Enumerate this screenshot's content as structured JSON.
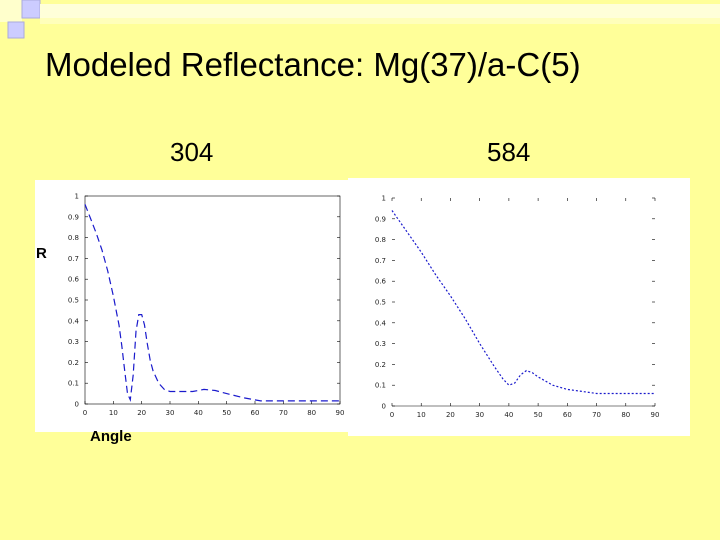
{
  "slide": {
    "title": "Modeled Reflectance: Mg(37)/a-C(5)",
    "background_color": "#ffff99"
  },
  "labels": {
    "left_wavelength": "304",
    "right_wavelength": "584",
    "y_axis_word": "R",
    "x_axis_word": "Angle"
  },
  "chart_data": [
    {
      "type": "line",
      "title": "304",
      "xlabel": "Angle",
      "ylabel": "R",
      "xlim": [
        0,
        90
      ],
      "ylim": [
        0,
        1
      ],
      "x_ticks": [
        "0",
        "10",
        "20",
        "30",
        "40",
        "50",
        "60",
        "70",
        "80",
        "90"
      ],
      "y_ticks": [
        "0",
        "0.1",
        "0.2",
        "0.3",
        "0.4",
        "0.5",
        "0.6",
        "0.7",
        "0.8",
        "0.9",
        "1"
      ],
      "grid": false,
      "line_color": "#1a1acc",
      "line_style": "dashed",
      "x": [
        0,
        2,
        4,
        6,
        8,
        10,
        12,
        13,
        14,
        15,
        16,
        17,
        18,
        19,
        20,
        21,
        22,
        23,
        24,
        26,
        28,
        30,
        34,
        38,
        42,
        46,
        50,
        56,
        62,
        70,
        80,
        90
      ],
      "y": [
        0.96,
        0.89,
        0.82,
        0.74,
        0.64,
        0.52,
        0.38,
        0.28,
        0.16,
        0.05,
        0.02,
        0.14,
        0.35,
        0.43,
        0.43,
        0.38,
        0.29,
        0.21,
        0.16,
        0.1,
        0.07,
        0.06,
        0.06,
        0.06,
        0.07,
        0.065,
        0.05,
        0.03,
        0.015,
        0.015,
        0.015,
        0.015
      ]
    },
    {
      "type": "line",
      "title": "584",
      "xlim": [
        0,
        90
      ],
      "ylim": [
        0,
        1
      ],
      "x_ticks": [
        "0",
        "10",
        "20",
        "30",
        "40",
        "50",
        "60",
        "70",
        "80",
        "90"
      ],
      "y_ticks": [
        "0",
        "0.1",
        "0.2",
        "0.3",
        "0.4",
        "0.5",
        "0.6",
        "0.7",
        "0.8",
        "0.9",
        "1"
      ],
      "grid": false,
      "line_color": "#1a1acc",
      "line_style": "dotted",
      "x": [
        0,
        5,
        10,
        15,
        20,
        25,
        30,
        35,
        38,
        40,
        42,
        44,
        46,
        48,
        50,
        55,
        60,
        65,
        70,
        75,
        80,
        85,
        90
      ],
      "y": [
        0.94,
        0.84,
        0.74,
        0.63,
        0.53,
        0.42,
        0.3,
        0.19,
        0.13,
        0.1,
        0.11,
        0.15,
        0.17,
        0.16,
        0.14,
        0.1,
        0.08,
        0.07,
        0.06,
        0.06,
        0.06,
        0.06,
        0.06
      ]
    }
  ]
}
